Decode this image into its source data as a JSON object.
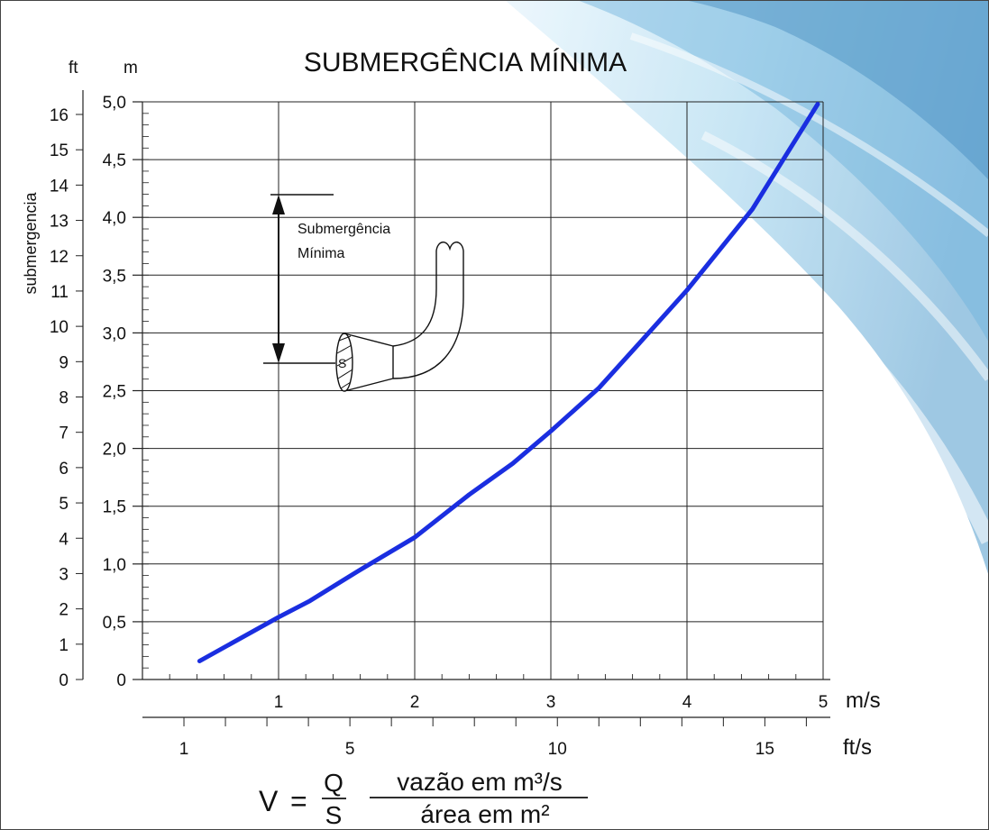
{
  "chart_data": {
    "type": "line",
    "title": "SUBMERGÊNCIA MÍNIMA",
    "ylabel": "submergencia",
    "y_units": {
      "ft": "ft",
      "m": "m"
    },
    "x_units": {
      "m_s": "m/s",
      "ft_s": "ft/s"
    },
    "ylim_m": [
      0,
      5.0
    ],
    "xlim_m_s": [
      0,
      5
    ],
    "y_ticks_m": [
      "0",
      "0,5",
      "1,0",
      "1,5",
      "2,0",
      "2,5",
      "3,0",
      "3,5",
      "4,0",
      "4,5",
      "5,0"
    ],
    "y_ticks_ft": [
      "0",
      "1",
      "2",
      "3",
      "4",
      "5",
      "6",
      "7",
      "8",
      "9",
      "10",
      "11",
      "12",
      "13",
      "14",
      "15",
      "16"
    ],
    "x_ticks_m_s": [
      "1",
      "2",
      "3",
      "4",
      "5"
    ],
    "x_ticks_ft_s": [
      "1",
      "5",
      "10",
      "15"
    ],
    "grid": true,
    "series_color": "#1a2ee0",
    "series": [
      {
        "x": [
          0.42,
          1.0,
          1.23,
          1.6,
          2.0,
          2.4,
          2.72,
          3.0,
          3.35,
          3.65,
          4.0,
          4.48,
          4.96
        ],
        "y": [
          0.16,
          0.54,
          0.68,
          0.95,
          1.23,
          1.6,
          1.87,
          2.15,
          2.52,
          2.91,
          3.37,
          4.07,
          4.98
        ]
      }
    ],
    "annotations": {
      "submergence_label_line1": "Submergência",
      "submergence_label_line2": "Mínima",
      "pipe_section_label": "S"
    },
    "formula": {
      "lhs": "V",
      "equals": "=",
      "numerator": "Q",
      "denominator": "S",
      "numerator_desc": "vazão em m³/s",
      "denominator_desc": "área em m²"
    }
  }
}
